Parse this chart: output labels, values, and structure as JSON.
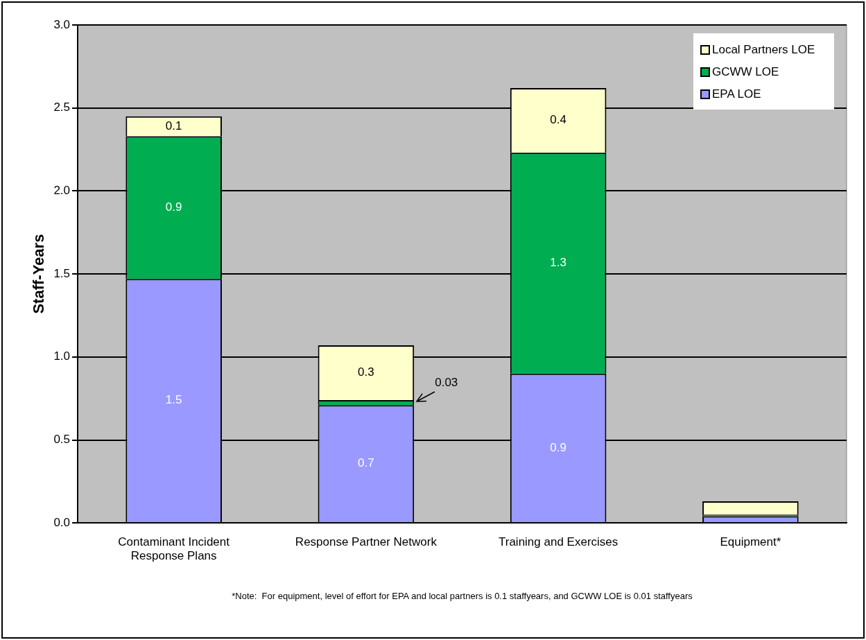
{
  "chart_data": {
    "type": "bar",
    "stacked": true,
    "ylabel": "Staff-Years",
    "categories": [
      "Contaminant Incident Response Plans",
      "Response Partner Network",
      "Training and Exercises",
      "Equipment*"
    ],
    "series": [
      {
        "name": "EPA LOE",
        "color": "#9999ff",
        "values": [
          1.47,
          0.71,
          0.9,
          0.04
        ],
        "value_labels": [
          "1.5",
          "0.7",
          "0.9",
          null
        ]
      },
      {
        "name": "GCWW LOE",
        "color": "#00ad50",
        "values": [
          0.86,
          0.03,
          1.33,
          0.01
        ],
        "value_labels": [
          "0.9",
          "0.03",
          "1.3",
          null
        ]
      },
      {
        "name": "Local Partners LOE",
        "color": "#ffffcc",
        "values": [
          0.12,
          0.33,
          0.39,
          0.08
        ],
        "value_labels": [
          "0.1",
          "0.3",
          "0.4",
          null
        ]
      }
    ],
    "ylim": [
      0,
      3
    ],
    "yticks": [
      {
        "value": 0,
        "label": "0.0"
      },
      {
        "value": 0.5,
        "label": "0.5"
      },
      {
        "value": 1,
        "label": "1.0"
      },
      {
        "value": 1.5,
        "label": "1.5"
      },
      {
        "value": 2,
        "label": "2.0"
      },
      {
        "value": 2.5,
        "label": "2.5"
      },
      {
        "value": 3,
        "label": "3.0"
      }
    ],
    "grid": "y",
    "legend": "top right",
    "annotations": [
      "*Note:  For equipment, level of effort for EPA and local partners is 0.1 staffyears, and GCWW LOE is 0.01 staffyears"
    ]
  }
}
